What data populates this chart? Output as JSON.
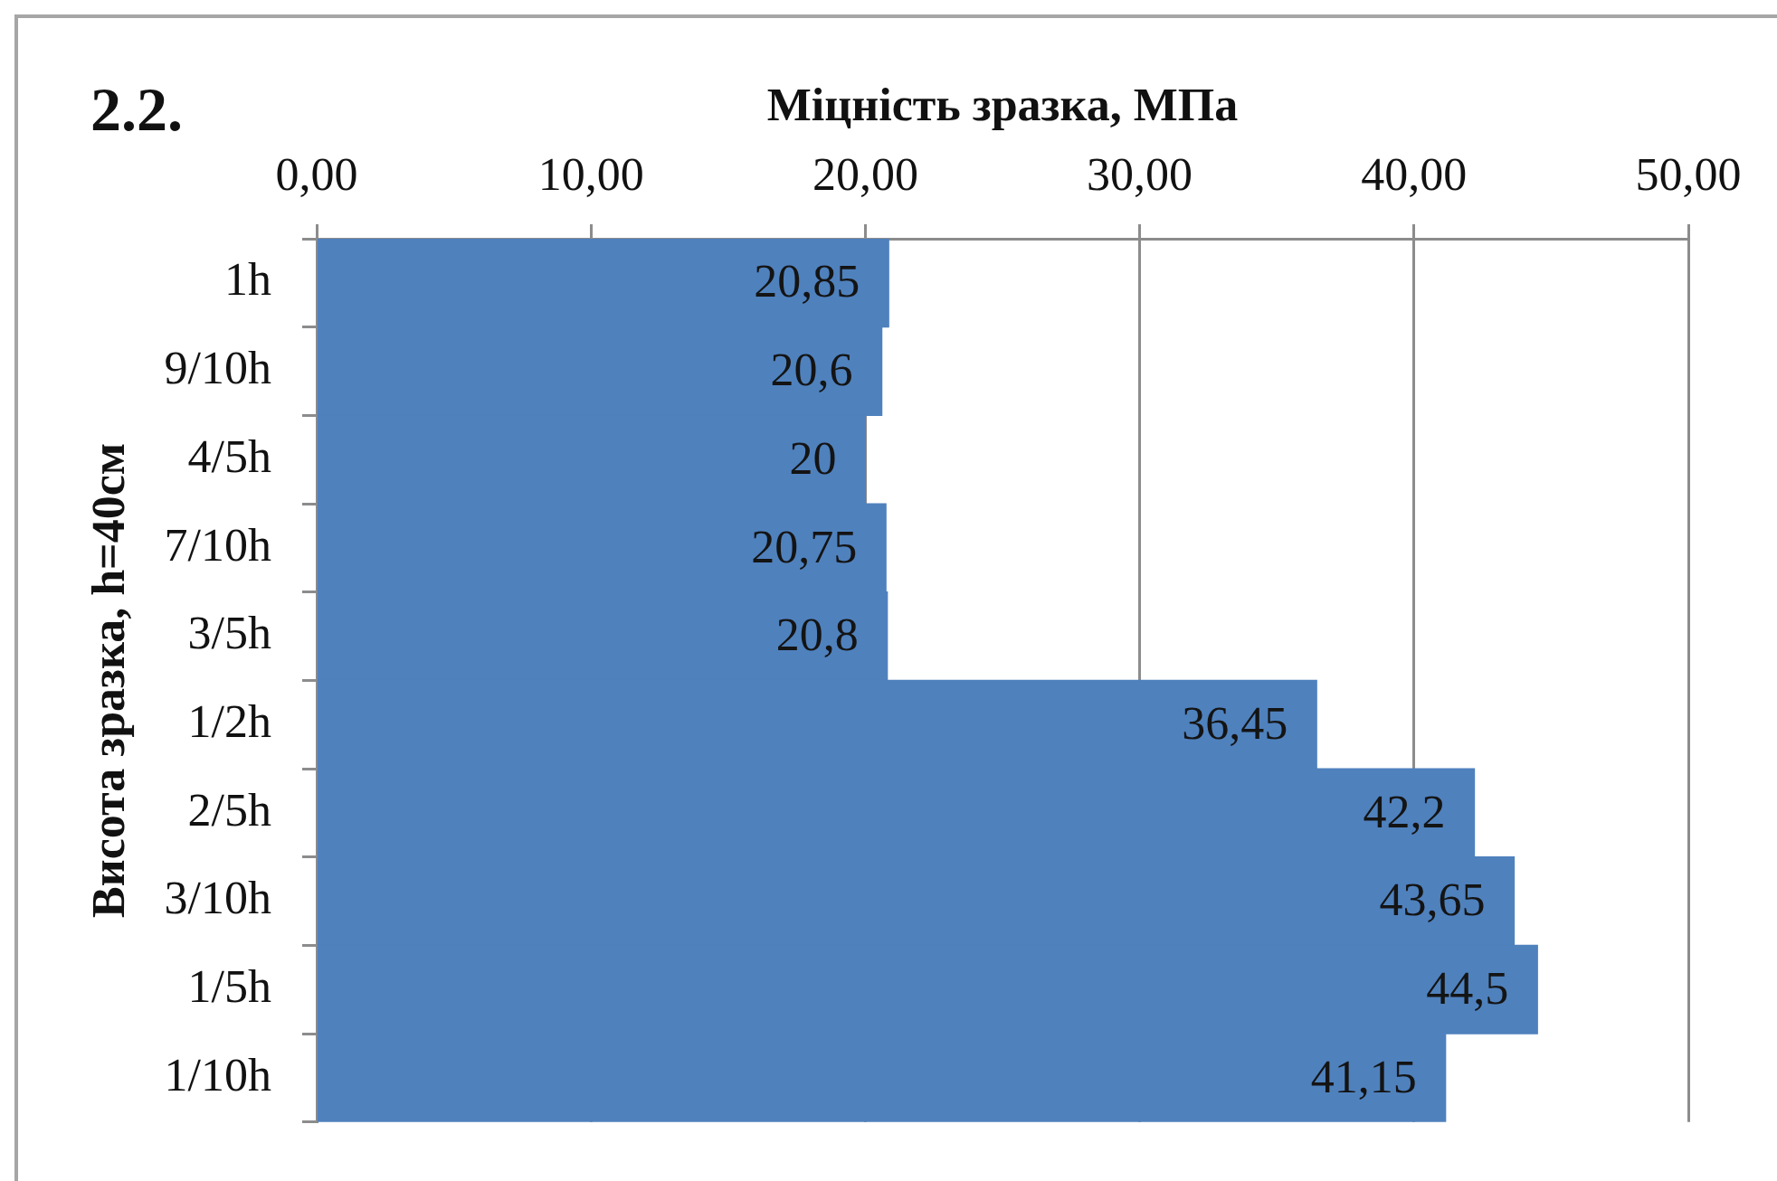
{
  "chart_data": {
    "type": "bar",
    "orientation": "horizontal",
    "title": "2.2.",
    "xlabel": "Міцність зразка, МПа",
    "ylabel": "Висота зразка, h=40см",
    "categories": [
      "1h",
      "9/10h",
      "4/5h",
      "7/10h",
      "3/5h",
      "1/2h",
      "2/5h",
      "3/10h",
      "1/5h",
      "1/10h"
    ],
    "values": [
      20.85,
      20.6,
      20,
      20.75,
      20.8,
      36.45,
      42.2,
      43.65,
      44.5,
      41.15
    ],
    "value_labels": [
      "20,85",
      "20,6",
      "20",
      "20,75",
      "20,8",
      "36,45",
      "42,2",
      "43,65",
      "44,5",
      "41,15"
    ],
    "color": "#4f81bd",
    "xlim": [
      0,
      50
    ],
    "xticks": [
      {
        "value": 0,
        "label": "0,00"
      },
      {
        "value": 10,
        "label": "10,00"
      },
      {
        "value": 20,
        "label": "20,00"
      },
      {
        "value": 30,
        "label": "30,00"
      },
      {
        "value": 40,
        "label": "40,00"
      },
      {
        "value": 50,
        "label": "50,00"
      }
    ],
    "grid": "x"
  }
}
